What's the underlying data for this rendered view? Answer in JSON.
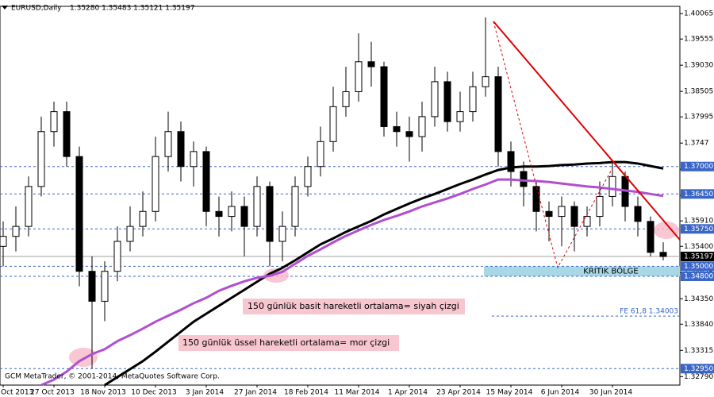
{
  "chart_data": {
    "type": "candlestick",
    "title": "EURUSD,Daily",
    "subtitle": "1.35280 1.35483 1.35121 1.35197",
    "categories": [
      "Oct 2013",
      null,
      null,
      null,
      "27 Oct 2013",
      null,
      null,
      null,
      "18 Nov 2013",
      null,
      null,
      null,
      "10 Dec 2013",
      null,
      null,
      null,
      "3 Jan 2014",
      null,
      null,
      null,
      "27 Jan 2014",
      null,
      null,
      null,
      "18 Feb 2014",
      null,
      null,
      null,
      "11 Mar 2014",
      null,
      null,
      null,
      "1 Apr 2014",
      null,
      null,
      null,
      "23 Apr 2014",
      null,
      null,
      null,
      "15 May 2014",
      null,
      null,
      null,
      "6 Jun 2014",
      null,
      null,
      null,
      "30 Jun 2014",
      null,
      null,
      null,
      null
    ],
    "open": [
      1.354,
      1.356,
      1.358,
      1.366,
      1.377,
      1.381,
      1.372,
      1.349,
      1.343,
      1.349,
      1.355,
      1.358,
      1.361,
      1.372,
      1.377,
      1.37,
      1.373,
      1.361,
      1.36,
      1.362,
      1.358,
      1.366,
      1.355,
      1.358,
      1.366,
      1.37,
      1.375,
      1.382,
      1.385,
      1.391,
      1.39,
      1.378,
      1.377,
      1.376,
      1.38,
      1.387,
      1.379,
      1.381,
      1.386,
      1.388,
      1.373,
      1.369,
      1.366,
      1.361,
      1.36,
      1.362,
      1.358,
      1.36,
      1.364,
      1.368,
      1.362,
      1.359,
      1.3528
    ],
    "high": [
      1.359,
      1.362,
      1.368,
      1.38,
      1.383,
      1.383,
      1.374,
      1.352,
      1.351,
      1.358,
      1.362,
      1.365,
      1.376,
      1.381,
      1.379,
      1.375,
      1.374,
      1.364,
      1.365,
      1.364,
      1.368,
      1.367,
      1.361,
      1.368,
      1.372,
      1.378,
      1.386,
      1.39,
      1.3967,
      1.395,
      1.391,
      1.381,
      1.38,
      1.383,
      1.39,
      1.389,
      1.385,
      1.389,
      1.3999,
      1.39,
      1.375,
      1.371,
      1.367,
      1.363,
      1.364,
      1.363,
      1.362,
      1.367,
      1.371,
      1.369,
      1.364,
      1.36,
      1.35483
    ],
    "low": [
      1.35,
      1.353,
      1.356,
      1.364,
      1.374,
      1.37,
      1.346,
      1.3295,
      1.339,
      1.347,
      1.353,
      1.356,
      1.359,
      1.369,
      1.367,
      1.366,
      1.358,
      1.356,
      1.357,
      1.352,
      1.356,
      1.35,
      1.351,
      1.356,
      1.364,
      1.368,
      1.373,
      1.38,
      1.383,
      1.386,
      1.376,
      1.374,
      1.371,
      1.373,
      1.378,
      1.377,
      1.377,
      1.379,
      1.384,
      1.37,
      1.366,
      1.362,
      1.357,
      1.355,
      1.354,
      1.353,
      1.356,
      1.358,
      1.362,
      1.359,
      1.356,
      1.352,
      1.35121
    ],
    "close": [
      1.356,
      1.358,
      1.366,
      1.377,
      1.381,
      1.372,
      1.349,
      1.343,
      1.349,
      1.355,
      1.358,
      1.361,
      1.372,
      1.377,
      1.37,
      1.373,
      1.361,
      1.36,
      1.362,
      1.358,
      1.366,
      1.355,
      1.358,
      1.366,
      1.37,
      1.375,
      1.382,
      1.385,
      1.391,
      1.39,
      1.378,
      1.377,
      1.376,
      1.38,
      1.387,
      1.379,
      1.381,
      1.386,
      1.388,
      1.373,
      1.369,
      1.366,
      1.361,
      1.36,
      1.362,
      1.358,
      1.36,
      1.364,
      1.368,
      1.362,
      1.359,
      1.3528,
      1.35197
    ],
    "series": [
      {
        "color": "#000000",
        "values": [
          null,
          null,
          null,
          null,
          null,
          null,
          null,
          null,
          1.3262,
          1.3278,
          1.3294,
          1.331,
          1.3329,
          1.3349,
          1.3369,
          1.3389,
          1.3405,
          1.3421,
          1.3437,
          1.3453,
          1.3469,
          1.3485,
          1.3497,
          1.3512,
          1.3528,
          1.3544,
          1.3556,
          1.3569,
          1.358,
          1.3591,
          1.3604,
          1.3615,
          1.3626,
          1.3636,
          1.3645,
          1.3655,
          1.3665,
          1.3674,
          1.3684,
          1.3693,
          1.3698,
          1.37,
          1.37,
          1.3701,
          1.3703,
          1.3704,
          1.3706,
          1.3707,
          1.3709,
          1.3709,
          1.3706,
          1.3701,
          1.3696
        ]
      },
      {
        "color": "#b04fd0",
        "values": [
          null,
          null,
          null,
          1.3262,
          1.3273,
          1.3289,
          1.331,
          1.3324,
          1.3334,
          1.335,
          1.3362,
          1.3375,
          1.3389,
          1.3401,
          1.3413,
          1.3426,
          1.3437,
          1.3451,
          1.3461,
          1.347,
          1.3477,
          1.3481,
          1.3489,
          1.3505,
          1.3521,
          1.3534,
          1.3548,
          1.3561,
          1.3572,
          1.3583,
          1.3593,
          1.3601,
          1.361,
          1.362,
          1.3628,
          1.3636,
          1.3645,
          1.3655,
          1.3664,
          1.3674,
          1.3674,
          1.3672,
          1.3671,
          1.3669,
          1.3666,
          1.3663,
          1.366,
          1.3658,
          1.3655,
          1.3652,
          1.3649,
          1.3645,
          1.3641
        ]
      }
    ],
    "ylim": [
      1.3262,
      1.4021
    ],
    "yticks": [
      1.40065,
      1.39555,
      {
        "value": 1.3903,
        "label": "1.39030"
      },
      1.38505,
      1.37995,
      1.3747,
      1.36945,
      {
        "value": 1.3642,
        "label": "1.36420"
      },
      {
        "value": 1.3591,
        "label": "1.35910"
      },
      {
        "value": 1.354,
        "label": "1.35400"
      },
      1.34875,
      {
        "value": 1.3435,
        "label": "1.34350"
      },
      {
        "value": 1.3384,
        "label": "1.33840"
      },
      1.33315,
      {
        "value": 1.3279,
        "label": "1.32790"
      }
    ],
    "levels": [
      {
        "value": 1.37,
        "label": "1.37000",
        "color": "#3a66c8"
      },
      {
        "value": 1.3645,
        "label": "1.36450",
        "color": "#3a66c8"
      },
      {
        "value": 1.3575,
        "label": "1.35750",
        "color": "#3a66c8"
      },
      {
        "value": 1.35197,
        "label": "1.35197",
        "color": "#000000"
      },
      {
        "value": 1.35,
        "label": "1.35000",
        "color": "#3a66c8"
      },
      {
        "value": 1.348,
        "label": "1.34800",
        "color": "#3a66c8"
      },
      {
        "value": 1.3295,
        "label": "1.32950",
        "color": "#3a66c8"
      }
    ],
    "fe_level": {
      "value": 1.34003,
      "label": "FE 61,8 1.34003"
    },
    "zone": {
      "from": 1.348,
      "to": 1.35,
      "label": "KRITIK BÖLGE",
      "color": "#a8d8e6"
    },
    "annotations": [
      "150 günlük basit hareketli ortalama= siyah çizgi",
      "150 günlük üssel hareketli ortalama= mor çizgi"
    ],
    "copyright": "GCM MetaTrader, © 2001-2014, MetaQuotes Software Corp."
  }
}
